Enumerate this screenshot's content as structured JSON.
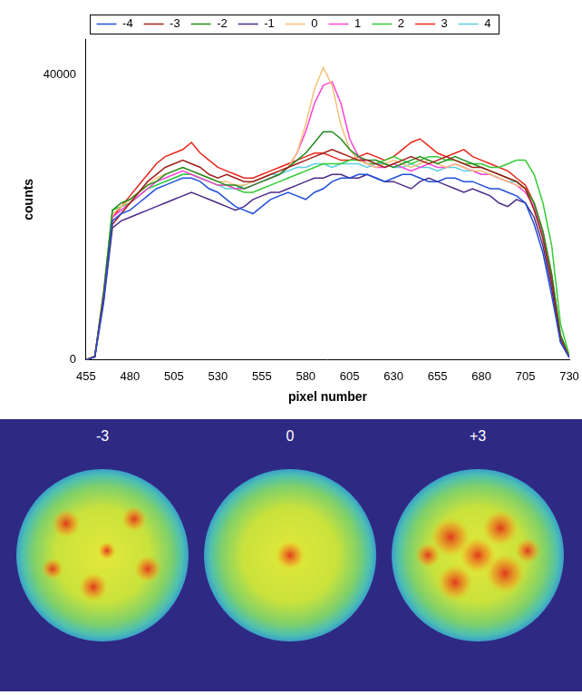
{
  "chart_data": {
    "type": "line",
    "x_label": "pixel number",
    "y_label": "counts",
    "x": [
      455,
      460,
      465,
      470,
      475,
      480,
      485,
      490,
      495,
      500,
      505,
      510,
      515,
      520,
      525,
      530,
      535,
      540,
      545,
      550,
      555,
      560,
      565,
      570,
      575,
      580,
      585,
      590,
      595,
      600,
      605,
      610,
      615,
      620,
      625,
      630,
      635,
      640,
      645,
      650,
      655,
      660,
      665,
      670,
      675,
      680,
      685,
      690,
      695,
      700,
      705,
      710,
      715,
      720,
      725,
      730
    ],
    "series": [
      {
        "name": "-4",
        "color": "#1f4fd8",
        "values": [
          0,
          400,
          8500,
          19500,
          20500,
          21000,
          22000,
          23000,
          24000,
          24500,
          25000,
          25500,
          25500,
          25000,
          24000,
          23500,
          22500,
          21500,
          21000,
          20500,
          21500,
          22500,
          23000,
          23500,
          23000,
          22500,
          23500,
          24000,
          25000,
          25500,
          25500,
          26000,
          26000,
          25500,
          25000,
          25500,
          26000,
          26000,
          25500,
          25000,
          25000,
          25500,
          25500,
          25000,
          25000,
          24500,
          24000,
          24000,
          23500,
          23000,
          22000,
          19000,
          15000,
          9000,
          2500,
          300
        ]
      },
      {
        "name": "-3",
        "color": "#a0201a",
        "values": [
          0,
          500,
          9000,
          19000,
          20500,
          22000,
          23500,
          25000,
          26000,
          27000,
          27500,
          28000,
          27500,
          27000,
          26000,
          25500,
          26000,
          25500,
          25000,
          25000,
          25500,
          26000,
          26500,
          27000,
          27500,
          28000,
          28500,
          29000,
          29500,
          29000,
          28500,
          28000,
          28000,
          27500,
          27000,
          27500,
          28000,
          28500,
          28000,
          27500,
          28000,
          28500,
          28000,
          27500,
          27000,
          27000,
          26500,
          26000,
          25500,
          25000,
          24000,
          21000,
          17000,
          11000,
          3000,
          400
        ]
      },
      {
        "name": "-2",
        "color": "#1e8c1e",
        "values": [
          0,
          500,
          9500,
          21000,
          22000,
          22500,
          23500,
          24500,
          25000,
          26000,
          26500,
          27000,
          26500,
          26000,
          25500,
          25000,
          24500,
          24500,
          24000,
          24500,
          25000,
          25500,
          26000,
          27000,
          28000,
          29000,
          30500,
          32000,
          32000,
          31000,
          29500,
          28500,
          28000,
          28000,
          27500,
          27000,
          27500,
          28000,
          28500,
          28000,
          27500,
          28000,
          28500,
          28000,
          27500,
          27000,
          26500,
          26000,
          25500,
          25000,
          24000,
          22000,
          18000,
          12000,
          3500,
          400
        ]
      },
      {
        "name": "-1",
        "color": "#4b2a8a",
        "values": [
          0,
          400,
          8000,
          18500,
          19500,
          20000,
          20500,
          21000,
          21500,
          22000,
          22500,
          23000,
          23500,
          23000,
          22500,
          22000,
          21500,
          21000,
          21500,
          22500,
          23000,
          23500,
          23500,
          24000,
          24500,
          25000,
          25500,
          25500,
          26000,
          26000,
          25500,
          25500,
          26000,
          25500,
          25000,
          25000,
          24500,
          24000,
          25000,
          25500,
          25000,
          24500,
          24000,
          23500,
          24000,
          23500,
          23000,
          22000,
          21500,
          22500,
          22000,
          20000,
          16000,
          10000,
          2500,
          300
        ]
      },
      {
        "name": "0",
        "color": "#f5c27a",
        "values": [
          0,
          500,
          9500,
          20500,
          21500,
          22500,
          23500,
          24500,
          25500,
          26000,
          26500,
          27000,
          26500,
          26000,
          25500,
          25000,
          25000,
          24500,
          24500,
          25000,
          25500,
          26000,
          26500,
          27000,
          29000,
          33000,
          38000,
          41000,
          38500,
          33000,
          29500,
          28000,
          27500,
          27000,
          27500,
          28000,
          27500,
          27000,
          27500,
          28000,
          27500,
          27000,
          27500,
          27000,
          26500,
          26500,
          26000,
          25500,
          25000,
          24500,
          24000,
          22000,
          18000,
          12000,
          3500,
          400
        ]
      },
      {
        "name": "1",
        "color": "#ff44d6",
        "values": [
          0,
          500,
          9000,
          20000,
          21000,
          22000,
          23000,
          24000,
          25000,
          25500,
          26000,
          26500,
          26000,
          25500,
          25000,
          24500,
          24500,
          24000,
          24000,
          24500,
          25000,
          25500,
          26000,
          27000,
          29000,
          32000,
          36000,
          38500,
          39000,
          36000,
          31000,
          28500,
          27500,
          27000,
          27000,
          27500,
          27000,
          26500,
          27000,
          27500,
          27000,
          27000,
          27500,
          27000,
          26500,
          26000,
          26000,
          25500,
          25000,
          24500,
          23500,
          21500,
          17500,
          11500,
          3000,
          400
        ]
      },
      {
        "name": "2",
        "color": "#33cc33",
        "values": [
          0,
          500,
          9500,
          21000,
          21500,
          22000,
          23000,
          24000,
          24500,
          25000,
          25500,
          26000,
          26000,
          25500,
          25000,
          24500,
          24500,
          24000,
          23500,
          23500,
          24000,
          24500,
          25000,
          25500,
          26000,
          26500,
          27000,
          27500,
          27500,
          27500,
          28000,
          28000,
          27500,
          27500,
          28000,
          28500,
          28000,
          27500,
          28000,
          28500,
          28500,
          28000,
          28000,
          27500,
          27500,
          27500,
          27000,
          27000,
          27500,
          28000,
          28000,
          26000,
          22000,
          16000,
          5000,
          600
        ]
      },
      {
        "name": "3",
        "color": "#e8261a",
        "values": [
          0,
          500,
          9000,
          20000,
          21500,
          23000,
          24500,
          26000,
          27500,
          28500,
          29000,
          29500,
          30500,
          29000,
          28000,
          27000,
          26500,
          26000,
          25500,
          25500,
          26000,
          26500,
          27000,
          27500,
          28000,
          28500,
          29000,
          29000,
          28500,
          28000,
          28000,
          28500,
          29000,
          28500,
          28000,
          28500,
          29500,
          30500,
          31000,
          30000,
          29000,
          28500,
          29000,
          29500,
          28500,
          28000,
          27500,
          27000,
          26500,
          25500,
          24500,
          22000,
          18000,
          11500,
          3000,
          400
        ]
      },
      {
        "name": "4",
        "color": "#5ccfe0",
        "values": [
          0,
          500,
          9000,
          20000,
          21000,
          22000,
          23000,
          24000,
          24500,
          25000,
          25500,
          26000,
          26000,
          25500,
          25000,
          24500,
          24000,
          24000,
          24500,
          25000,
          25500,
          26000,
          26000,
          26500,
          27000,
          27000,
          27500,
          27500,
          27000,
          27500,
          27500,
          27500,
          27000,
          27500,
          27500,
          27000,
          27000,
          27500,
          27000,
          27000,
          26500,
          27000,
          27000,
          26500,
          26500,
          26000,
          26000,
          25500,
          25000,
          25000,
          24000,
          22000,
          18000,
          12000,
          3500,
          400
        ]
      }
    ],
    "xlim": [
      455,
      730
    ],
    "xticks": [
      455,
      480,
      505,
      530,
      555,
      580,
      605,
      630,
      655,
      680,
      705,
      730
    ],
    "ylim": [
      0,
      45000
    ],
    "yticks": [
      0,
      40000
    ],
    "grid": false,
    "legend": "top"
  },
  "images": {
    "labels": [
      "-3",
      "0",
      "+3"
    ]
  }
}
